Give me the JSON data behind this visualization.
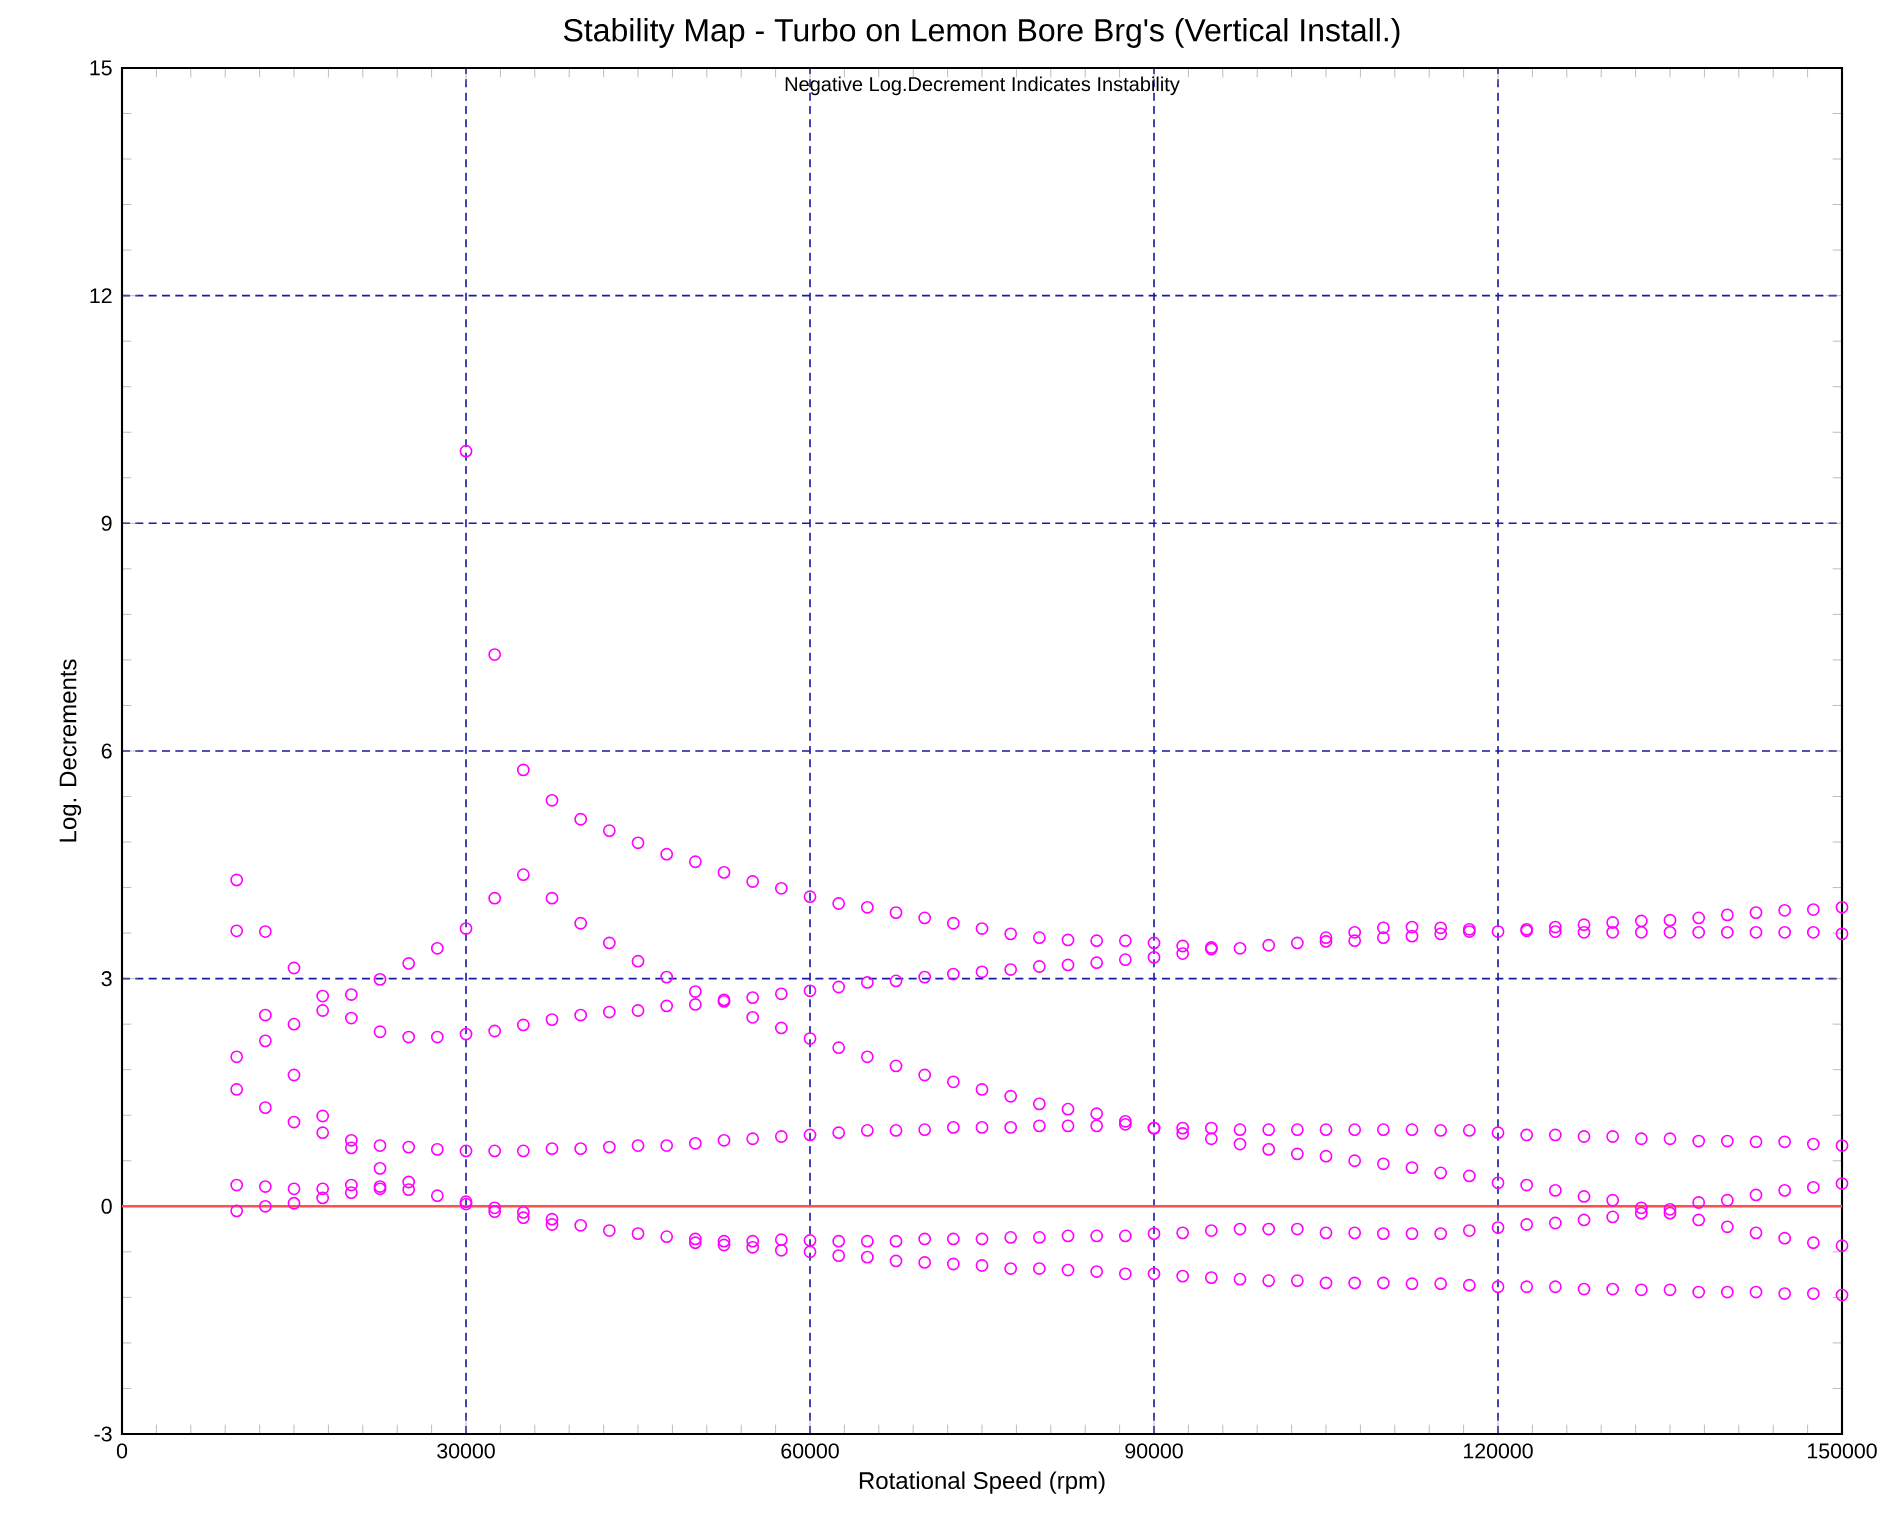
{
  "chart_data": {
    "type": "scatter",
    "title": "Stability Map - Turbo on Lemon Bore Brg's (Vertical Install.)",
    "xlabel": "Rotational Speed (rpm)",
    "ylabel": "Log. Decrements",
    "annotations": [
      "Negative Log.Decrement Indicates Instability"
    ],
    "xlim": [
      0,
      150000
    ],
    "ylim": [
      -3,
      15
    ],
    "xticks": [
      0,
      30000,
      60000,
      90000,
      120000,
      150000
    ],
    "yticks": [
      -3,
      0,
      3,
      6,
      9,
      12,
      15
    ],
    "grid": true,
    "marker": "circle",
    "ref_lines": [
      {
        "axis": "y",
        "value": 0,
        "color": "#ff5050"
      }
    ],
    "series": [
      {
        "color": "#ff00ff",
        "x": [
          10000,
          10000,
          10000,
          10000,
          10000,
          10000,
          12500,
          12500,
          12500,
          12500,
          12500,
          12500,
          15000,
          15000,
          15000,
          15000,
          15000,
          15000,
          17500,
          17500,
          17500,
          17500,
          17500,
          17500,
          20000,
          20000,
          20000,
          20000,
          20000,
          20000,
          22500,
          22500,
          22500,
          22500,
          22500,
          22500,
          25000,
          25000,
          25000,
          25000,
          25000,
          27500,
          27500,
          27500,
          27500,
          30000,
          30000,
          30000,
          30000,
          30000,
          30000,
          32500,
          32500,
          32500,
          32500,
          32500,
          32500,
          35000,
          35000,
          35000,
          35000,
          35000,
          35000,
          37500,
          37500,
          37500,
          37500,
          37500,
          37500,
          40000,
          40000,
          40000,
          40000,
          40000,
          42500,
          42500,
          42500,
          42500,
          42500,
          45000,
          45000,
          45000,
          45000,
          45000,
          47500,
          47500,
          47500,
          47500,
          47500,
          50000,
          50000,
          50000,
          50000,
          50000,
          50000,
          52500,
          52500,
          52500,
          52500,
          52500,
          52500,
          55000,
          55000,
          55000,
          55000,
          55000,
          55000,
          57500,
          57500,
          57500,
          57500,
          57500,
          57500,
          60000,
          60000,
          60000,
          60000,
          60000,
          60000,
          62500,
          62500,
          62500,
          62500,
          62500,
          62500,
          65000,
          65000,
          65000,
          65000,
          65000,
          65000,
          67500,
          67500,
          67500,
          67500,
          67500,
          67500,
          70000,
          70000,
          70000,
          70000,
          70000,
          70000,
          72500,
          72500,
          72500,
          72500,
          72500,
          72500,
          75000,
          75000,
          75000,
          75000,
          75000,
          75000,
          77500,
          77500,
          77500,
          77500,
          77500,
          77500,
          80000,
          80000,
          80000,
          80000,
          80000,
          80000,
          82500,
          82500,
          82500,
          82500,
          82500,
          82500,
          85000,
          85000,
          85000,
          85000,
          85000,
          85000,
          87500,
          87500,
          87500,
          87500,
          87500,
          87500,
          90000,
          90000,
          90000,
          90000,
          90000,
          90000,
          92500,
          92500,
          92500,
          92500,
          92500,
          92500,
          95000,
          95000,
          95000,
          95000,
          95000,
          95000,
          97500,
          97500,
          97500,
          97500,
          97500,
          100000,
          100000,
          100000,
          100000,
          100000,
          102500,
          102500,
          102500,
          102500,
          102500,
          105000,
          105000,
          105000,
          105000,
          105000,
          105000,
          107500,
          107500,
          107500,
          107500,
          107500,
          107500,
          110000,
          110000,
          110000,
          110000,
          110000,
          110000,
          112500,
          112500,
          112500,
          112500,
          112500,
          112500,
          115000,
          115000,
          115000,
          115000,
          115000,
          115000,
          117500,
          117500,
          117500,
          117500,
          117500,
          117500,
          120000,
          120000,
          120000,
          120000,
          120000,
          122500,
          122500,
          122500,
          122500,
          122500,
          122500,
          125000,
          125000,
          125000,
          125000,
          125000,
          125000,
          127500,
          127500,
          127500,
          127500,
          127500,
          127500,
          130000,
          130000,
          130000,
          130000,
          130000,
          130000,
          132500,
          132500,
          132500,
          132500,
          132500,
          132500,
          135000,
          135000,
          135000,
          135000,
          135000,
          135000,
          137500,
          137500,
          137500,
          137500,
          137500,
          137500,
          140000,
          140000,
          140000,
          140000,
          140000,
          140000,
          142500,
          142500,
          142500,
          142500,
          142500,
          142500,
          145000,
          145000,
          145000,
          145000,
          145000,
          145000,
          147500,
          147500,
          147500,
          147500,
          147500,
          147500,
          150000,
          150000,
          150000,
          150000,
          150000,
          150000
        ],
        "values": [
          4.3,
          3.63,
          1.97,
          1.54,
          0.28,
          -0.06,
          3.62,
          2.52,
          2.18,
          1.3,
          0.26,
          0.0,
          3.14,
          2.4,
          1.73,
          1.11,
          0.23,
          0.04,
          2.77,
          2.58,
          1.19,
          0.97,
          0.23,
          0.11,
          2.79,
          2.48,
          0.87,
          0.77,
          0.28,
          0.18,
          2.99,
          2.3,
          0.8,
          0.5,
          0.26,
          0.23,
          3.2,
          2.23,
          0.78,
          0.32,
          0.22,
          3.4,
          2.23,
          0.75,
          0.14,
          9.95,
          3.66,
          2.27,
          0.73,
          0.06,
          0.03,
          7.27,
          4.06,
          2.31,
          0.73,
          -0.02,
          -0.07,
          5.75,
          4.37,
          2.39,
          0.73,
          -0.08,
          -0.15,
          5.35,
          4.06,
          2.46,
          0.76,
          -0.17,
          -0.24,
          5.1,
          3.73,
          2.52,
          0.76,
          -0.25,
          4.95,
          3.47,
          2.56,
          0.78,
          -0.32,
          4.79,
          3.23,
          2.58,
          0.8,
          -0.36,
          4.64,
          3.02,
          2.64,
          0.8,
          -0.4,
          4.54,
          2.83,
          2.66,
          0.83,
          -0.43,
          -0.48,
          4.4,
          2.72,
          2.7,
          0.87,
          -0.46,
          -0.51,
          4.28,
          2.75,
          2.49,
          0.89,
          -0.46,
          -0.54,
          4.19,
          2.8,
          2.35,
          0.92,
          -0.44,
          -0.58,
          4.08,
          2.84,
          2.21,
          0.94,
          -0.45,
          -0.6,
          3.99,
          2.89,
          2.09,
          0.97,
          -0.46,
          -0.65,
          3.94,
          2.95,
          1.97,
          1.0,
          -0.46,
          -0.67,
          3.87,
          2.97,
          1.85,
          1.0,
          -0.46,
          -0.72,
          3.8,
          3.02,
          1.73,
          1.01,
          -0.43,
          -0.74,
          3.73,
          3.06,
          1.64,
          1.04,
          -0.43,
          -0.76,
          3.66,
          3.09,
          1.54,
          1.04,
          -0.43,
          -0.78,
          3.59,
          3.12,
          1.45,
          1.04,
          -0.41,
          -0.82,
          3.54,
          3.16,
          1.35,
          1.06,
          -0.41,
          -0.82,
          3.51,
          3.18,
          1.28,
          1.06,
          -0.39,
          -0.84,
          3.5,
          3.21,
          1.22,
          1.06,
          -0.39,
          -0.86,
          3.5,
          3.25,
          1.12,
          1.08,
          -0.39,
          -0.89,
          3.47,
          3.28,
          1.03,
          1.03,
          -0.36,
          -0.89,
          3.43,
          3.33,
          1.03,
          0.96,
          -0.35,
          -0.92,
          3.41,
          3.39,
          1.03,
          0.89,
          -0.32,
          -0.94,
          3.4,
          1.01,
          0.82,
          -0.3,
          -0.96,
          3.44,
          1.01,
          0.75,
          -0.3,
          -0.98,
          3.47,
          1.01,
          0.69,
          -0.3,
          -0.98,
          3.54,
          3.49,
          1.01,
          0.66,
          -0.35,
          -1.01,
          3.61,
          3.5,
          1.01,
          0.6,
          -0.35,
          -1.01,
          3.67,
          3.54,
          1.01,
          0.56,
          -0.36,
          -1.01,
          3.68,
          3.56,
          1.01,
          0.51,
          -0.36,
          -1.02,
          3.67,
          3.59,
          1.0,
          0.44,
          -0.36,
          -1.02,
          3.65,
          3.62,
          1.0,
          0.4,
          -0.32,
          -1.04,
          3.62,
          0.97,
          0.31,
          -0.28,
          -1.06,
          3.65,
          3.63,
          0.94,
          0.28,
          -0.24,
          -1.06,
          3.68,
          3.62,
          0.94,
          0.21,
          -0.22,
          -1.06,
          3.71,
          3.61,
          0.92,
          0.13,
          -0.18,
          -1.09,
          3.74,
          3.61,
          0.92,
          0.08,
          -0.14,
          -1.09,
          3.76,
          3.61,
          0.89,
          -0.02,
          -0.09,
          -1.1,
          3.77,
          3.61,
          0.89,
          -0.04,
          -0.09,
          -1.1,
          3.8,
          3.61,
          0.86,
          0.05,
          -0.18,
          -1.13,
          3.84,
          3.61,
          0.86,
          0.08,
          -0.27,
          -1.13,
          3.87,
          3.61,
          0.85,
          0.15,
          -0.35,
          -1.13,
          3.9,
          3.61,
          0.85,
          0.21,
          -0.42,
          -1.15,
          3.91,
          3.61,
          0.82,
          0.25,
          -0.48,
          -1.15,
          3.94,
          3.59,
          0.8,
          0.3,
          -0.52,
          -1.17
        ]
      }
    ]
  }
}
